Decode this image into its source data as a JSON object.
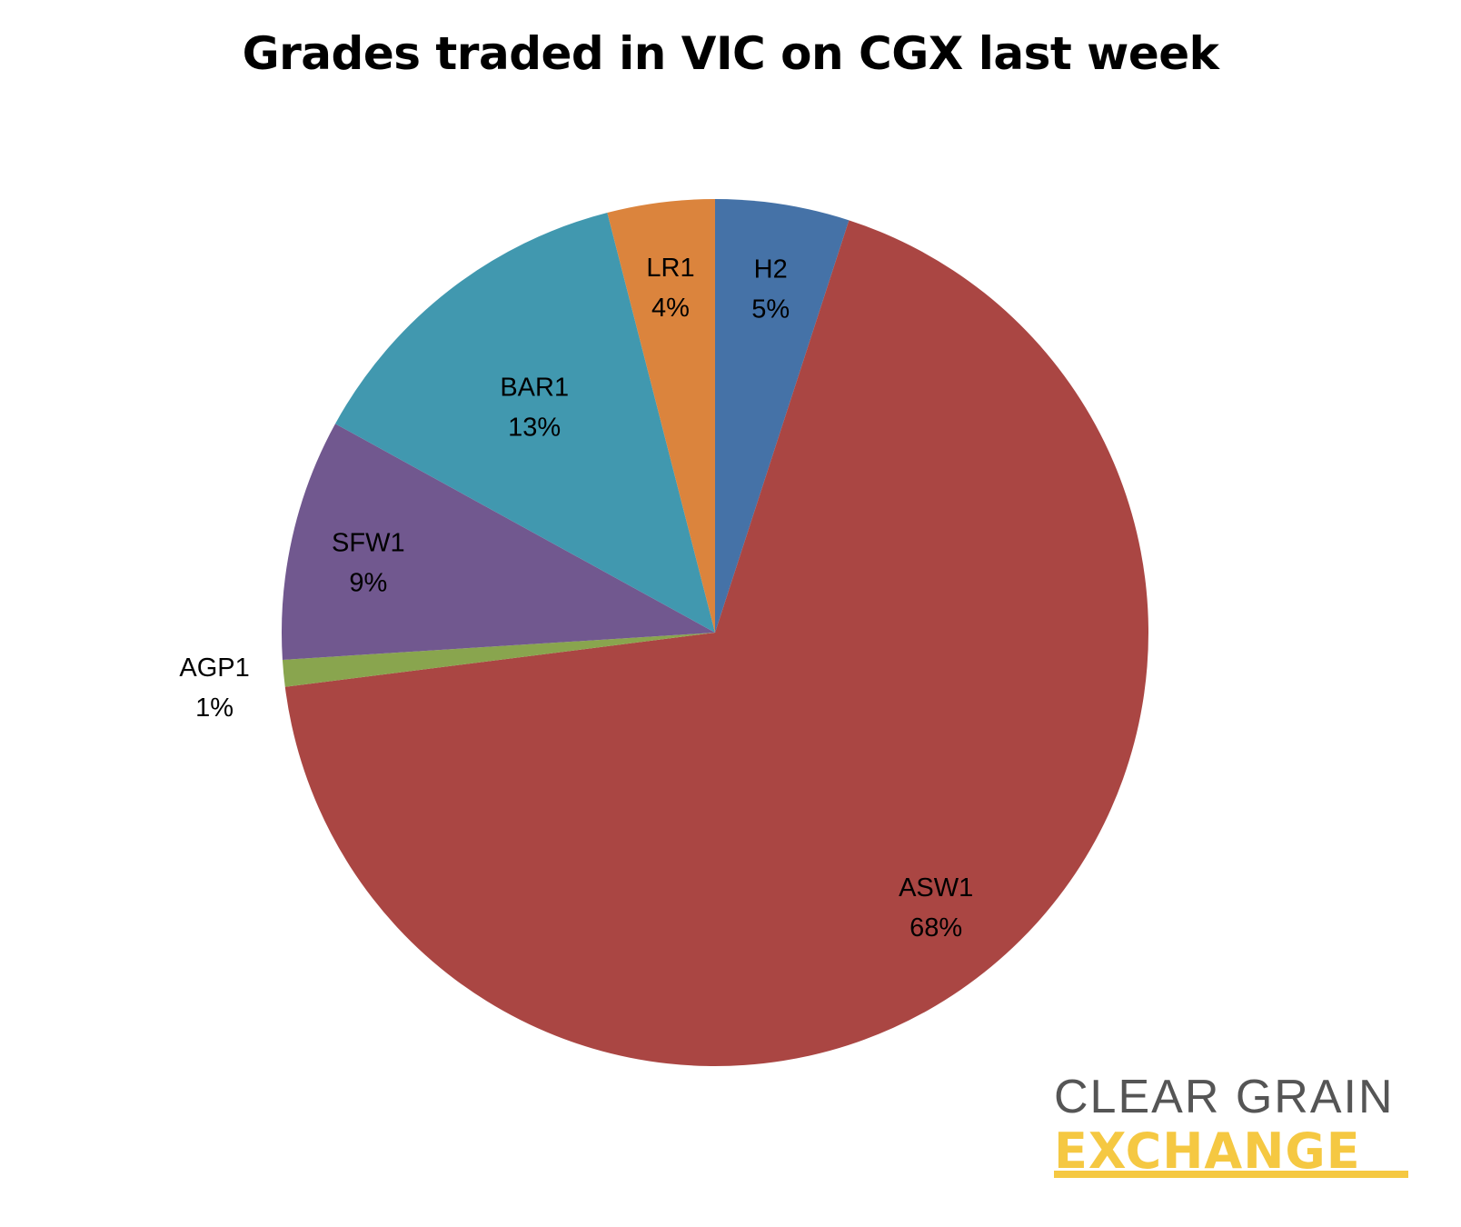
{
  "chart_data": {
    "type": "pie",
    "title": "Grades traded in VIC on CGX last week",
    "slices": [
      {
        "name": "H2",
        "value": 5,
        "label": "5%",
        "color": "#4572A7"
      },
      {
        "name": "ASW1",
        "value": 68,
        "label": "68%",
        "color": "#AA4643"
      },
      {
        "name": "AGP1",
        "value": 1,
        "label": "1%",
        "color": "#89A54E"
      },
      {
        "name": "SFW1",
        "value": 9,
        "label": "9%",
        "color": "#71588F"
      },
      {
        "name": "BAR1",
        "value": 13,
        "label": "13%",
        "color": "#4198AF"
      },
      {
        "name": "LR1",
        "value": 4,
        "label": "4%",
        "color": "#DB843D"
      }
    ],
    "start": "12 o'clock",
    "direction": "clockwise",
    "legend": "none"
  },
  "logo": {
    "line1": "CLEAR GRAIN",
    "line2": "EXCHANGE"
  }
}
